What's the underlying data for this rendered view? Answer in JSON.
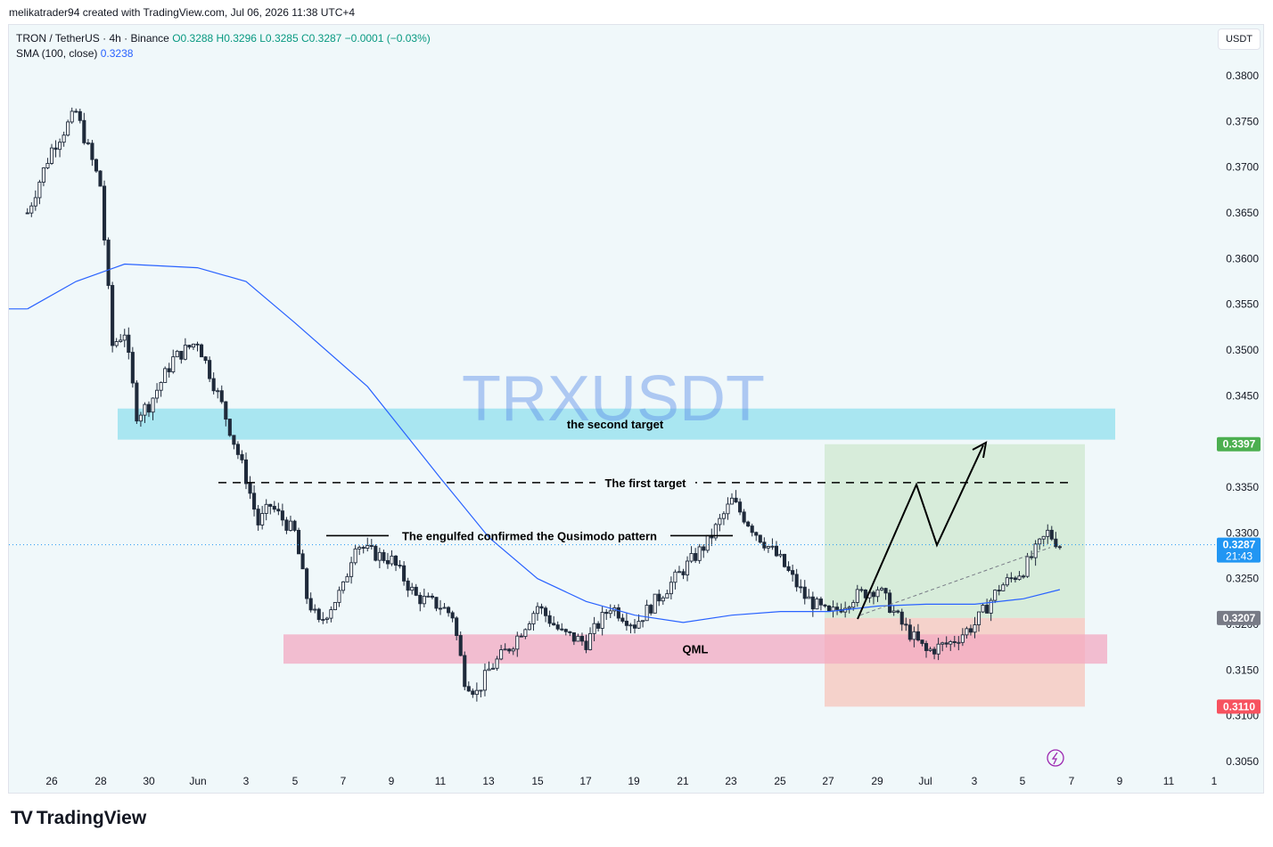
{
  "header": {
    "text": "melikatrader94 created with TradingView.com, Jul 06, 2026 11:38 UTC+4"
  },
  "legend": {
    "symbol": "TRON / TetherUS · 4h · Binance",
    "ohlc": "O0.3288 H0.3296 L0.3285 C0.3287 −0.0001 (−0.03%)",
    "sma_label": "SMA (100, close)",
    "sma_value": "0.3238"
  },
  "currency_button": "USDT",
  "watermark": "TRXUSDT",
  "footer_brand": "TradingView",
  "colors": {
    "up": "#089981",
    "down": "#f23645",
    "candle_body": "#1f2a3b",
    "sma": "#2962ff",
    "target_zone": "#9ce3ef",
    "qml_zone": "#f3a9c2",
    "profit": "#cfe8cf",
    "loss": "#f7c2b7"
  },
  "chart_data": {
    "type": "candlestick",
    "symbol": "TRXUSDT",
    "timeframe": "4h",
    "y_axis": {
      "ticks": [
        "0.3800",
        "0.3750",
        "0.3700",
        "0.3650",
        "0.3600",
        "0.3550",
        "0.3500",
        "0.3450",
        "0.3400",
        "0.3350",
        "0.3300",
        "0.3250",
        "0.3200",
        "0.3150",
        "0.3100",
        "0.3050"
      ],
      "range": [
        0.3035,
        0.3835
      ]
    },
    "x_axis": {
      "ticks": [
        "26",
        "28",
        "30",
        "Jun",
        "3",
        "5",
        "7",
        "9",
        "11",
        "13",
        "15",
        "17",
        "19",
        "21",
        "23",
        "25",
        "27",
        "29",
        "Jul",
        "3",
        "5",
        "7",
        "9",
        "11",
        "1"
      ]
    },
    "price_labels": [
      {
        "value": "0.3397",
        "color": "#4caf50"
      },
      {
        "value": "0.3287",
        "sub": "21:43",
        "color": "#2196f3"
      },
      {
        "value": "0.3207",
        "color": "#787b86"
      },
      {
        "value": "0.3110",
        "color": "#f7525f"
      }
    ],
    "current_price": 0.3287,
    "close_path": [
      {
        "x": "25",
        "y": 0.365
      },
      {
        "x": "26",
        "y": 0.372
      },
      {
        "x": "27",
        "y": 0.376
      },
      {
        "x": "28",
        "y": 0.368
      },
      {
        "x": "28.5",
        "y": 0.3505
      },
      {
        "x": "29",
        "y": 0.352
      },
      {
        "x": "29.5",
        "y": 0.343
      },
      {
        "x": "30",
        "y": 0.344
      },
      {
        "x": "31",
        "y": 0.349
      },
      {
        "x": "Jun 1",
        "y": 0.351
      },
      {
        "x": "Jun 2",
        "y": 0.344
      },
      {
        "x": "Jun 3",
        "y": 0.336
      },
      {
        "x": "Jun 3.5",
        "y": 0.331
      },
      {
        "x": "Jun 4",
        "y": 0.333
      },
      {
        "x": "Jun 5",
        "y": 0.33
      },
      {
        "x": "Jun 5.5",
        "y": 0.323
      },
      {
        "x": "Jun 6",
        "y": 0.32
      },
      {
        "x": "Jun 7",
        "y": 0.324
      },
      {
        "x": "Jun 7.5",
        "y": 0.329
      },
      {
        "x": "Jun 8",
        "y": 0.328
      },
      {
        "x": "Jun 9",
        "y": 0.327
      },
      {
        "x": "Jun 10",
        "y": 0.323
      },
      {
        "x": "Jun 11",
        "y": 0.322
      },
      {
        "x": "Jun 11.5",
        "y": 0.321
      },
      {
        "x": "Jun 12",
        "y": 0.314
      },
      {
        "x": "Jun 12.5",
        "y": 0.3125
      },
      {
        "x": "Jun 13",
        "y": 0.315
      },
      {
        "x": "Jun 14",
        "y": 0.318
      },
      {
        "x": "Jun 15",
        "y": 0.322
      },
      {
        "x": "Jun 16",
        "y": 0.319
      },
      {
        "x": "Jun 17",
        "y": 0.318
      },
      {
        "x": "Jun 18",
        "y": 0.322
      },
      {
        "x": "Jun 19",
        "y": 0.32
      },
      {
        "x": "Jun 20",
        "y": 0.323
      },
      {
        "x": "Jun 21",
        "y": 0.326
      },
      {
        "x": "Jun 22",
        "y": 0.329
      },
      {
        "x": "Jun 23",
        "y": 0.3335
      },
      {
        "x": "Jun 24",
        "y": 0.33
      },
      {
        "x": "Jun 25",
        "y": 0.327
      },
      {
        "x": "Jun 26",
        "y": 0.323
      },
      {
        "x": "Jun 27",
        "y": 0.321
      },
      {
        "x": "Jun 28",
        "y": 0.323
      },
      {
        "x": "Jun 29",
        "y": 0.324
      },
      {
        "x": "Jun 30",
        "y": 0.32
      },
      {
        "x": "Jul 1",
        "y": 0.317
      },
      {
        "x": "Jul 2",
        "y": 0.318
      },
      {
        "x": "Jul 3",
        "y": 0.32
      },
      {
        "x": "Jul 4",
        "y": 0.324
      },
      {
        "x": "Jul 5",
        "y": 0.326
      },
      {
        "x": "Jul 6",
        "y": 0.33
      },
      {
        "x": "Jul 6.5",
        "y": 0.3287
      }
    ],
    "sma_path": [
      {
        "x": "25",
        "y": 0.3545
      },
      {
        "x": "27",
        "y": 0.3575
      },
      {
        "x": "29",
        "y": 0.3594
      },
      {
        "x": "Jun 1",
        "y": 0.359
      },
      {
        "x": "Jun 3",
        "y": 0.3575
      },
      {
        "x": "Jun 5",
        "y": 0.353
      },
      {
        "x": "Jun 8",
        "y": 0.346
      },
      {
        "x": "Jun 11",
        "y": 0.336
      },
      {
        "x": "Jun 13",
        "y": 0.3295
      },
      {
        "x": "Jun 15",
        "y": 0.325
      },
      {
        "x": "Jun 17",
        "y": 0.3225
      },
      {
        "x": "Jun 19",
        "y": 0.321
      },
      {
        "x": "Jun 21",
        "y": 0.3202
      },
      {
        "x": "Jun 23",
        "y": 0.321
      },
      {
        "x": "Jun 25",
        "y": 0.3214
      },
      {
        "x": "Jun 27",
        "y": 0.3214
      },
      {
        "x": "Jun 29",
        "y": 0.322
      },
      {
        "x": "Jul 1",
        "y": 0.3222
      },
      {
        "x": "Jul 3",
        "y": 0.3222
      },
      {
        "x": "Jul 5",
        "y": 0.3228
      },
      {
        "x": "Jul 6.5",
        "y": 0.3238
      }
    ],
    "annotations": {
      "second_target_label": "the second target",
      "second_target_zone": [
        0.3402,
        0.3436
      ],
      "first_target_label": "The first target",
      "first_target_level": 0.3355,
      "qusimodo_label": "The engulfed confirmed the Qusimodo pattern",
      "qusimodo_level": 0.3297,
      "qml_label": "QML",
      "qml_zone": [
        0.3157,
        0.3189
      ],
      "position": {
        "entry": 0.3207,
        "target": 0.3397,
        "stop": 0.311
      }
    }
  }
}
